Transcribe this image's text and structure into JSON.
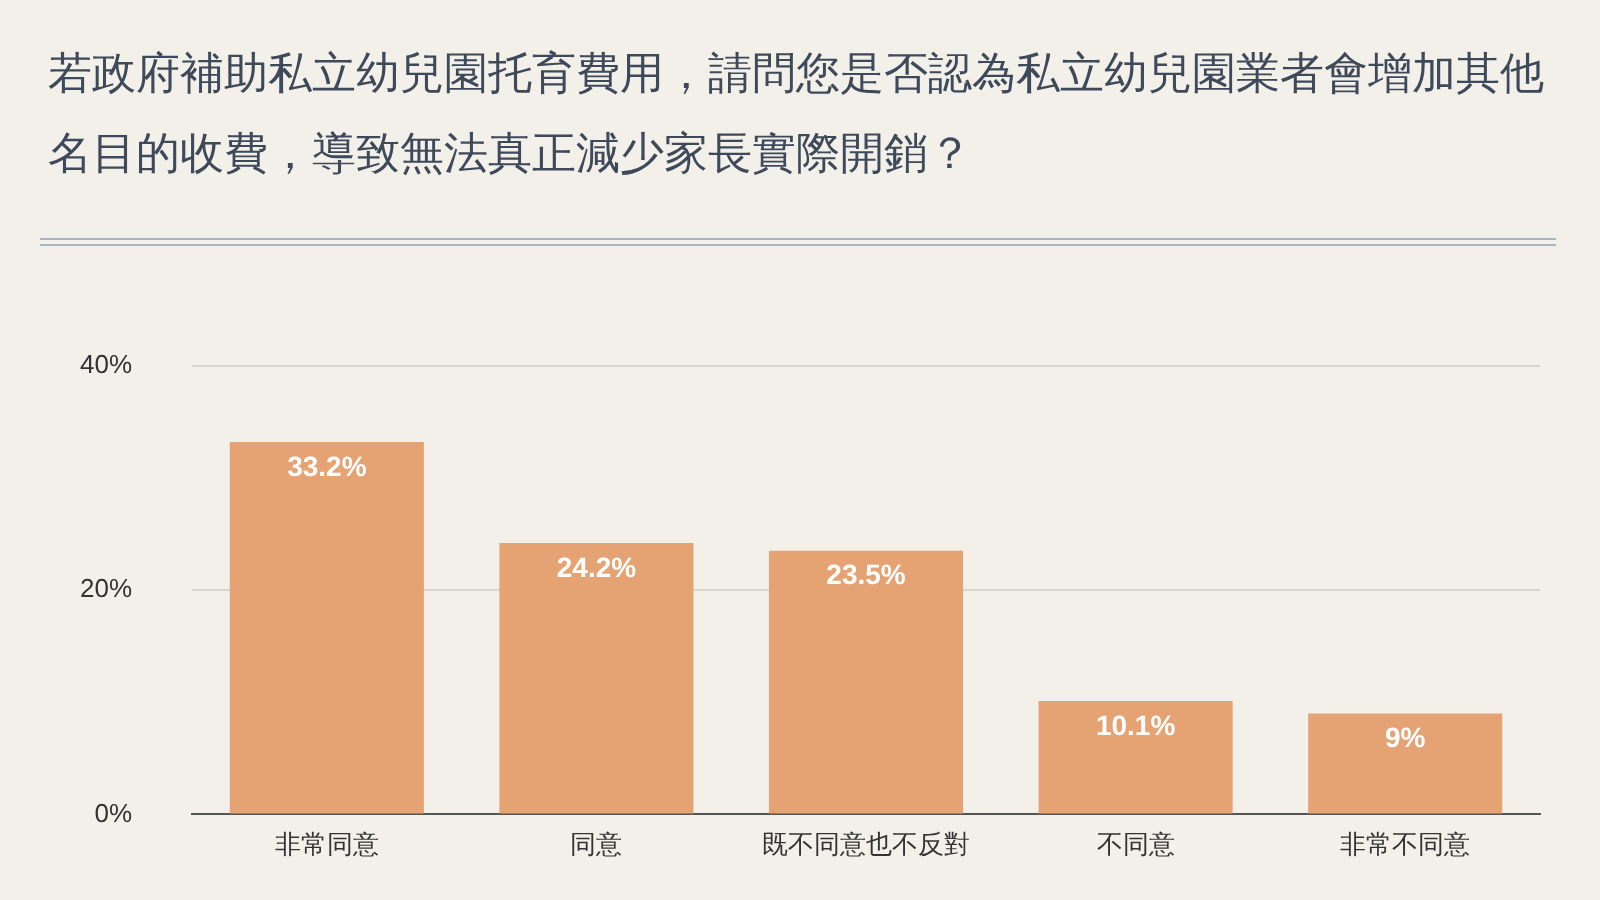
{
  "chart_data": {
    "type": "bar",
    "title": "若政府補助私立幼兒園托育費用，請問您是否認為私立幼兒園業者會增加其他名目的收費，導致無法真正減少家長實際開銷？",
    "categories": [
      "非常同意",
      "同意",
      "既不同意也不反對",
      "不同意",
      "非常不同意"
    ],
    "values": [
      33.2,
      24.2,
      23.5,
      10.1,
      9
    ],
    "value_labels": [
      "33.2%",
      "24.2%",
      "23.5%",
      "10.1%",
      "9%"
    ],
    "color": "#e5a273",
    "ylim": [
      0,
      40
    ],
    "yticks": [
      {
        "value": 0,
        "label": "0%"
      },
      {
        "value": 20,
        "label": "20%"
      },
      {
        "value": 40,
        "label": "40%"
      }
    ],
    "grid": "y"
  }
}
